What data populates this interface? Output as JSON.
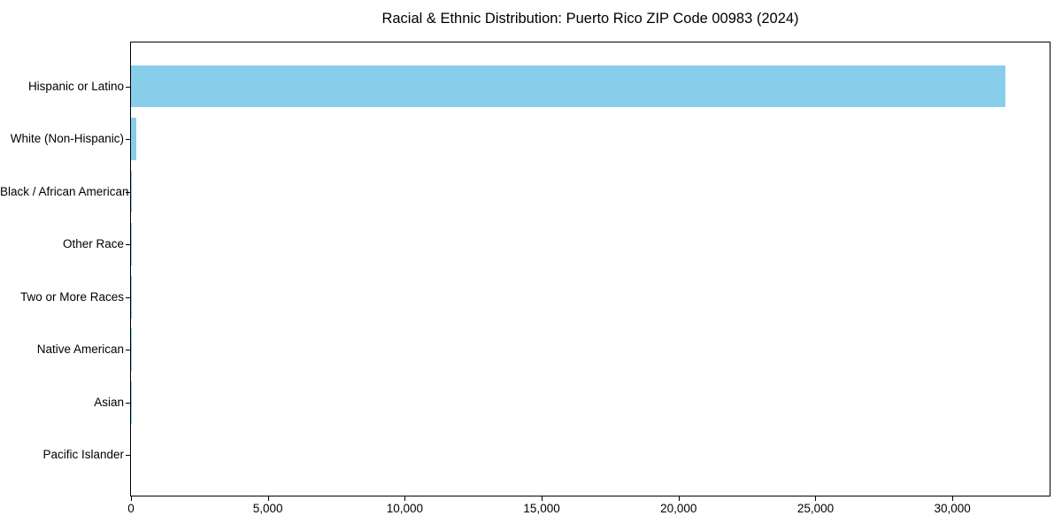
{
  "chart_data": {
    "type": "bar",
    "orientation": "horizontal",
    "title": "Racial & Ethnic Distribution: Puerto Rico ZIP Code 00983 (2024)",
    "categories": [
      "Hispanic or Latino",
      "White (Non-Hispanic)",
      "Black / African American",
      "Other Race",
      "Two or More Races",
      "Native American",
      "Asian",
      "Pacific Islander"
    ],
    "values": [
      31950,
      200,
      45,
      40,
      20,
      10,
      5,
      0
    ],
    "bar_color": "#87CEEB",
    "xlabel": "",
    "ylabel": "",
    "xlim": [
      0,
      33550
    ],
    "x_ticks": [
      0,
      5000,
      10000,
      15000,
      20000,
      25000,
      30000
    ],
    "x_tick_labels": [
      "0",
      "5,000",
      "10,000",
      "15,000",
      "20,000",
      "25,000",
      "30,000"
    ],
    "grid": false,
    "legend": null,
    "background_color": "#ffffff",
    "spine_color": "#000000",
    "text_color": "#000000"
  }
}
